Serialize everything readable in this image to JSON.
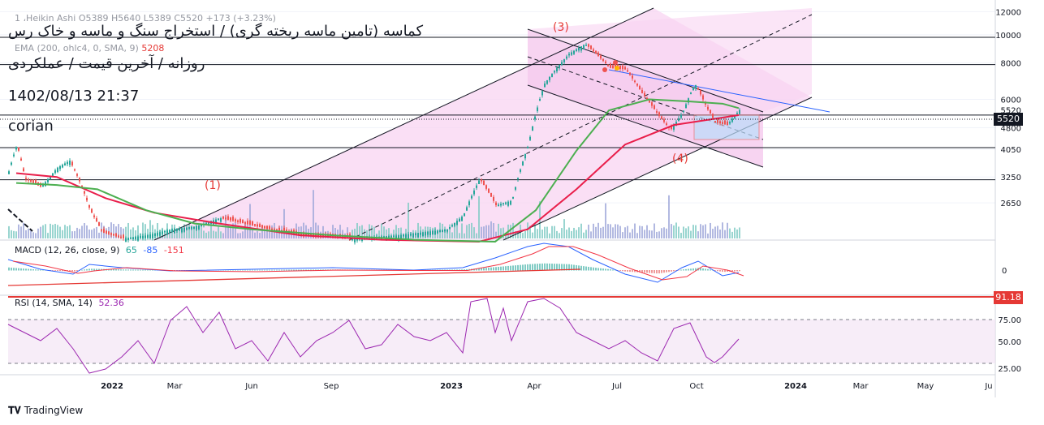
{
  "header": {
    "symbol_line": "1 ،Heikin Ashi  O5389  H5640  L5389  C5520  +173 (+3.23%)",
    "title": "کماسه (تامین ماسه ریخته گری) / استخراج سنگ و ماسه و خاک رس",
    "subtitle": "روزانه / آخرین قیمت / عملکردی",
    "datetime": "1402/08/13 21:37",
    "author": "corian",
    "ema_label": "EMA (200, ohlc4, 0, SMA, 9)",
    "ema_value": "5208"
  },
  "annotations": [
    "(1)",
    "(3)",
    "(4)"
  ],
  "indicators": {
    "macd": {
      "label": "MACD (12, 26, close, 9)",
      "v1": "65",
      "v2": "-85",
      "v3": "-151",
      "c1": "#26a69a",
      "c2": "#2962ff",
      "c3": "#f23645"
    },
    "rsi": {
      "label": "RSI (14, SMA, 14)",
      "value": "52.36",
      "level_tag": "91.18"
    }
  },
  "colors": {
    "up": "#26a69a",
    "down": "#ef5350",
    "channel": "#f8d4f2",
    "ema_red": "#e91e4a",
    "ema_green": "#4caf50",
    "rsi": "#9c27b0"
  },
  "price_tag": "5520",
  "brand": {
    "logo": "tradingview-logo",
    "name": "TradingView"
  },
  "chart_data": [
    {
      "type": "candlestick",
      "scale": "log",
      "ylim": [
        2000,
        12500
      ],
      "y_ticks": [
        "12000",
        "10000",
        "8000",
        "6000",
        "5520",
        "4800",
        "4050",
        "3250",
        "2650"
      ],
      "x_ticks": [
        "2022",
        "Mar",
        "Jun",
        "Sep",
        "2023",
        "Apr",
        "Jul",
        "Oct",
        "2024",
        "Mar",
        "May",
        "Ju"
      ],
      "horizontal_levels": [
        9800,
        7900,
        5300,
        4100,
        3180
      ],
      "series": [
        {
          "values": [
            [
              0,
              3400
            ],
            [
              10,
              4200
            ],
            [
              20,
              3200
            ],
            [
              40,
              3000
            ],
            [
              60,
              3500
            ],
            [
              75,
              3700
            ],
            [
              90,
              3000
            ],
            [
              100,
              2500
            ],
            [
              115,
              2100
            ],
            [
              140,
              2000
            ],
            [
              170,
              2050
            ],
            [
              200,
              2150
            ],
            [
              230,
              2200
            ],
            [
              260,
              2350
            ],
            [
              290,
              2250
            ],
            [
              320,
              2150
            ],
            [
              360,
              2050
            ],
            [
              420,
              2000
            ],
            [
              480,
              2050
            ],
            [
              540,
              2150
            ],
            [
              560,
              2400
            ],
            [
              580,
              3200
            ],
            [
              600,
              2600
            ],
            [
              620,
              2700
            ],
            [
              640,
              4200
            ],
            [
              660,
              6800
            ],
            [
              690,
              8600
            ],
            [
              710,
              9300
            ],
            [
              740,
              7700
            ],
            [
              760,
              7600
            ],
            [
              780,
              6300
            ],
            [
              800,
              5300
            ],
            [
              815,
              4700
            ],
            [
              830,
              5400
            ],
            [
              845,
              6800
            ],
            [
              860,
              5600
            ],
            [
              870,
              5000
            ],
            [
              885,
              4900
            ],
            [
              900,
              5520
            ]
          ]
        },
        {
          "name": "EMA 200",
          "values": [
            [
              10,
              3350
            ],
            [
              60,
              3250
            ],
            [
              120,
              2750
            ],
            [
              180,
              2450
            ],
            [
              260,
              2250
            ],
            [
              360,
              2050
            ],
            [
              460,
              1980
            ],
            [
              580,
              1950
            ],
            [
              640,
              2150
            ],
            [
              700,
              2950
            ],
            [
              760,
              4200
            ],
            [
              820,
              4900
            ],
            [
              900,
              5300
            ]
          ]
        },
        {
          "values": [
            [
              10,
              3100
            ],
            [
              60,
              3050
            ],
            [
              110,
              2950
            ],
            [
              170,
              2500
            ],
            [
              230,
              2250
            ],
            [
              300,
              2150
            ],
            [
              400,
              2050
            ],
            [
              500,
              1980
            ],
            [
              600,
              1950
            ],
            [
              650,
              2500
            ],
            [
              700,
              4000
            ],
            [
              740,
              5500
            ],
            [
              790,
              6000
            ],
            [
              840,
              5900
            ],
            [
              880,
              5800
            ],
            [
              900,
              5600
            ]
          ]
        }
      ]
    },
    {
      "type": "line",
      "values": [
        [
          0,
          320
        ],
        [
          40,
          332
        ],
        [
          80,
          338
        ],
        [
          100,
          326
        ],
        [
          140,
          330
        ],
        [
          200,
          334
        ],
        [
          300,
          332
        ],
        [
          400,
          330
        ],
        [
          500,
          333
        ],
        [
          560,
          330
        ],
        [
          600,
          318
        ],
        [
          640,
          304
        ],
        [
          660,
          300
        ],
        [
          690,
          304
        ],
        [
          720,
          320
        ],
        [
          760,
          338
        ],
        [
          800,
          348
        ],
        [
          830,
          330
        ],
        [
          850,
          322
        ],
        [
          880,
          340
        ],
        [
          900,
          336
        ]
      ]
    },
    {
      "type": "line",
      "y_ticks": [
        "75.00",
        "50.00",
        "25.00"
      ],
      "values": [
        [
          0,
          400
        ],
        [
          20,
          410
        ],
        [
          40,
          420
        ],
        [
          60,
          405
        ],
        [
          80,
          430
        ],
        [
          100,
          460
        ],
        [
          120,
          455
        ],
        [
          140,
          440
        ],
        [
          160,
          420
        ],
        [
          180,
          448
        ],
        [
          200,
          395
        ],
        [
          220,
          378
        ],
        [
          240,
          410
        ],
        [
          260,
          385
        ],
        [
          280,
          430
        ],
        [
          300,
          420
        ],
        [
          320,
          445
        ],
        [
          340,
          410
        ],
        [
          360,
          440
        ],
        [
          380,
          420
        ],
        [
          400,
          410
        ],
        [
          420,
          395
        ],
        [
          440,
          430
        ],
        [
          460,
          425
        ],
        [
          480,
          400
        ],
        [
          500,
          415
        ],
        [
          520,
          420
        ],
        [
          540,
          410
        ],
        [
          560,
          435
        ],
        [
          570,
          372
        ],
        [
          590,
          368
        ],
        [
          600,
          410
        ],
        [
          610,
          380
        ],
        [
          620,
          420
        ],
        [
          640,
          372
        ],
        [
          660,
          368
        ],
        [
          680,
          380
        ],
        [
          700,
          410
        ],
        [
          720,
          420
        ],
        [
          740,
          430
        ],
        [
          760,
          420
        ],
        [
          780,
          435
        ],
        [
          800,
          445
        ],
        [
          820,
          405
        ],
        [
          840,
          398
        ],
        [
          860,
          440
        ],
        [
          870,
          447
        ],
        [
          880,
          440
        ],
        [
          900,
          418
        ]
      ]
    }
  ]
}
